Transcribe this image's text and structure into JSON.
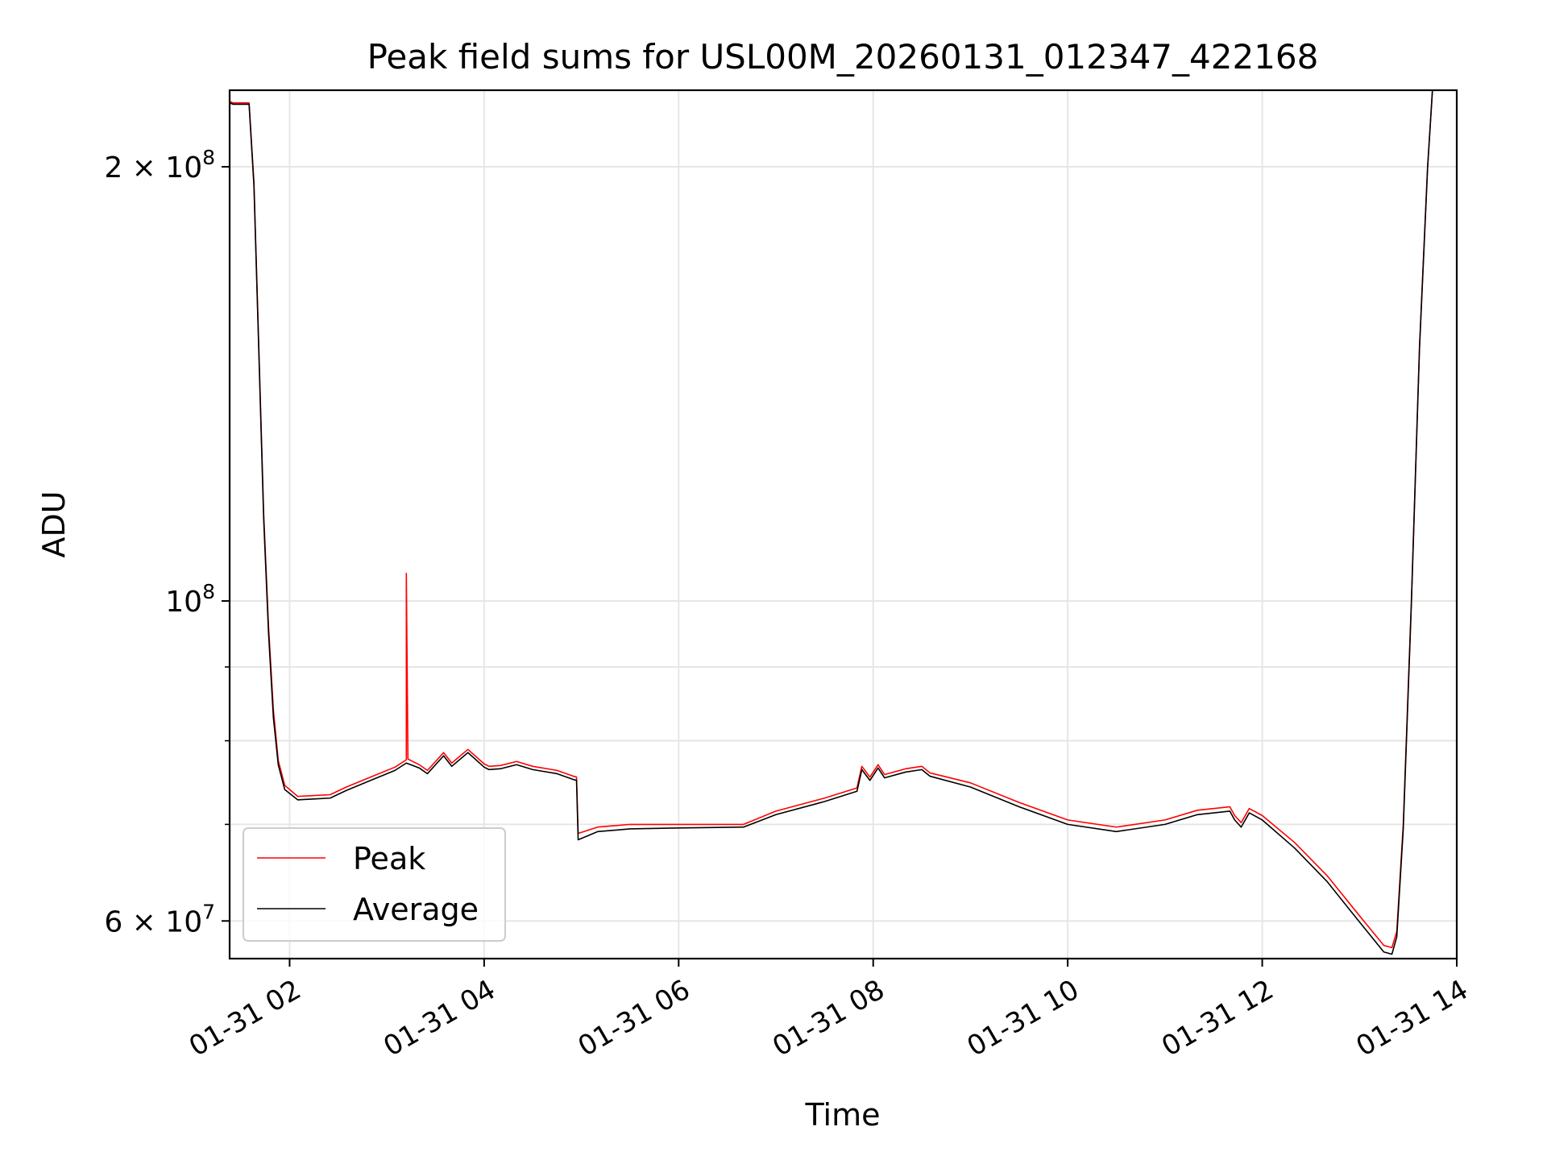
{
  "chart_data": {
    "type": "line",
    "title": "Peak field sums for USL00M_20260131_012347_422168",
    "xlabel": "Time",
    "ylabel": "ADU",
    "y_scale": "log",
    "grid": true,
    "legend_position": "lower-left",
    "xlim": [
      "2026-01-31 01:23",
      "2026-01-31 14:00"
    ],
    "ylim": [
      56500000,
      226000000
    ],
    "x_ticks": [
      "2026-01-31 02:00",
      "2026-01-31 04:00",
      "2026-01-31 06:00",
      "2026-01-31 08:00",
      "2026-01-31 10:00",
      "2026-01-31 12:00",
      "2026-01-31 14:00"
    ],
    "x_tick_labels": [
      "01-31 02",
      "01-31 04",
      "01-31 06",
      "01-31 08",
      "01-31 10",
      "01-31 12",
      "01-31 14"
    ],
    "y_major_ticks": [
      {
        "value": 60000000,
        "mantissa": "6",
        "exp": "7"
      },
      {
        "value": 100000000,
        "mantissa": "",
        "exp": "8"
      },
      {
        "value": 200000000,
        "mantissa": "2",
        "exp": "8"
      }
    ],
    "y_minor_ticks": [
      70000000,
      80000000,
      90000000
    ],
    "series": [
      {
        "name": "Peak",
        "color": "#ff0000",
        "points": [
          [
            "2026-01-31 01:23",
            222000000
          ],
          [
            "2026-01-31 01:25",
            221500000
          ],
          [
            "2026-01-31 01:35",
            221500000
          ],
          [
            "2026-01-31 01:38",
            195000000
          ],
          [
            "2026-01-31 01:41",
            150000000
          ],
          [
            "2026-01-31 01:44",
            115000000
          ],
          [
            "2026-01-31 01:47",
            96000000
          ],
          [
            "2026-01-31 01:50",
            84000000
          ],
          [
            "2026-01-31 01:53",
            77500000
          ],
          [
            "2026-01-31 01:57",
            74500000
          ],
          [
            "2026-01-31 02:05",
            73200000
          ],
          [
            "2026-01-31 02:15",
            73300000
          ],
          [
            "2026-01-31 02:25",
            73400000
          ],
          [
            "2026-01-31 02:35",
            74300000
          ],
          [
            "2026-01-31 02:50",
            75500000
          ],
          [
            "2026-01-31 03:05",
            76700000
          ],
          [
            "2026-01-31 03:12",
            77600000
          ],
          [
            "2026-01-31 03:12",
            104500000
          ],
          [
            "2026-01-31 03:13",
            77700000
          ],
          [
            "2026-01-31 03:20",
            77000000
          ],
          [
            "2026-01-31 03:25",
            76300000
          ],
          [
            "2026-01-31 03:35",
            78500000
          ],
          [
            "2026-01-31 03:40",
            77200000
          ],
          [
            "2026-01-31 03:50",
            78900000
          ],
          [
            "2026-01-31 04:00",
            77100000
          ],
          [
            "2026-01-31 04:03",
            76800000
          ],
          [
            "2026-01-31 04:10",
            76900000
          ],
          [
            "2026-01-31 04:20",
            77400000
          ],
          [
            "2026-01-31 04:30",
            76800000
          ],
          [
            "2026-01-31 04:45",
            76300000
          ],
          [
            "2026-01-31 04:55",
            75600000
          ],
          [
            "2026-01-31 04:57",
            75500000
          ],
          [
            "2026-01-31 04:58",
            69000000
          ],
          [
            "2026-01-31 05:10",
            69700000
          ],
          [
            "2026-01-31 05:30",
            70000000
          ],
          [
            "2026-01-31 06:00",
            70000000
          ],
          [
            "2026-01-31 06:40",
            70000000
          ],
          [
            "2026-01-31 07:00",
            71500000
          ],
          [
            "2026-01-31 07:30",
            73000000
          ],
          [
            "2026-01-31 07:50",
            74200000
          ],
          [
            "2026-01-31 07:53",
            76800000
          ],
          [
            "2026-01-31 07:58",
            75500000
          ],
          [
            "2026-01-31 08:03",
            77000000
          ],
          [
            "2026-01-31 08:07",
            75800000
          ],
          [
            "2026-01-31 08:20",
            76500000
          ],
          [
            "2026-01-31 08:30",
            76800000
          ],
          [
            "2026-01-31 08:35",
            76000000
          ],
          [
            "2026-01-31 09:00",
            74800000
          ],
          [
            "2026-01-31 09:30",
            72500000
          ],
          [
            "2026-01-31 10:00",
            70500000
          ],
          [
            "2026-01-31 10:30",
            69700000
          ],
          [
            "2026-01-31 11:00",
            70500000
          ],
          [
            "2026-01-31 11:20",
            71600000
          ],
          [
            "2026-01-31 11:40",
            72000000
          ],
          [
            "2026-01-31 11:43",
            71000000
          ],
          [
            "2026-01-31 11:47",
            70200000
          ],
          [
            "2026-01-31 11:52",
            71800000
          ],
          [
            "2026-01-31 12:00",
            71000000
          ],
          [
            "2026-01-31 12:20",
            68000000
          ],
          [
            "2026-01-31 12:40",
            64500000
          ],
          [
            "2026-01-31 13:00",
            60500000
          ],
          [
            "2026-01-31 13:15",
            57700000
          ],
          [
            "2026-01-31 13:20",
            57500000
          ],
          [
            "2026-01-31 13:23",
            59000000
          ],
          [
            "2026-01-31 13:27",
            70000000
          ],
          [
            "2026-01-31 13:32",
            100000000
          ],
          [
            "2026-01-31 13:37",
            150000000
          ],
          [
            "2026-01-31 13:42",
            200000000
          ],
          [
            "2026-01-31 13:45",
            226000000
          ]
        ]
      },
      {
        "name": "Average",
        "color": "#000000",
        "points": [
          [
            "2026-01-31 01:23",
            221500000
          ],
          [
            "2026-01-31 01:25",
            221000000
          ],
          [
            "2026-01-31 01:35",
            221000000
          ],
          [
            "2026-01-31 01:38",
            194000000
          ],
          [
            "2026-01-31 01:41",
            149000000
          ],
          [
            "2026-01-31 01:44",
            114000000
          ],
          [
            "2026-01-31 01:47",
            95000000
          ],
          [
            "2026-01-31 01:50",
            83000000
          ],
          [
            "2026-01-31 01:53",
            77000000
          ],
          [
            "2026-01-31 01:57",
            74000000
          ],
          [
            "2026-01-31 02:05",
            72800000
          ],
          [
            "2026-01-31 02:15",
            72900000
          ],
          [
            "2026-01-31 02:25",
            73000000
          ],
          [
            "2026-01-31 02:35",
            73900000
          ],
          [
            "2026-01-31 02:50",
            75100000
          ],
          [
            "2026-01-31 03:05",
            76300000
          ],
          [
            "2026-01-31 03:12",
            77200000
          ],
          [
            "2026-01-31 03:20",
            76600000
          ],
          [
            "2026-01-31 03:25",
            75900000
          ],
          [
            "2026-01-31 03:35",
            78100000
          ],
          [
            "2026-01-31 03:40",
            76800000
          ],
          [
            "2026-01-31 03:50",
            78500000
          ],
          [
            "2026-01-31 04:00",
            76700000
          ],
          [
            "2026-01-31 04:03",
            76400000
          ],
          [
            "2026-01-31 04:10",
            76500000
          ],
          [
            "2026-01-31 04:20",
            77000000
          ],
          [
            "2026-01-31 04:30",
            76400000
          ],
          [
            "2026-01-31 04:45",
            75900000
          ],
          [
            "2026-01-31 04:55",
            75200000
          ],
          [
            "2026-01-31 04:57",
            75100000
          ],
          [
            "2026-01-31 04:58",
            68300000
          ],
          [
            "2026-01-31 05:10",
            69200000
          ],
          [
            "2026-01-31 05:30",
            69500000
          ],
          [
            "2026-01-31 06:00",
            69600000
          ],
          [
            "2026-01-31 06:40",
            69700000
          ],
          [
            "2026-01-31 07:00",
            71100000
          ],
          [
            "2026-01-31 07:30",
            72600000
          ],
          [
            "2026-01-31 07:50",
            73800000
          ],
          [
            "2026-01-31 07:53",
            76400000
          ],
          [
            "2026-01-31 07:58",
            75100000
          ],
          [
            "2026-01-31 08:03",
            76600000
          ],
          [
            "2026-01-31 08:07",
            75400000
          ],
          [
            "2026-01-31 08:20",
            76100000
          ],
          [
            "2026-01-31 08:30",
            76400000
          ],
          [
            "2026-01-31 08:35",
            75600000
          ],
          [
            "2026-01-31 09:00",
            74300000
          ],
          [
            "2026-01-31 09:30",
            72000000
          ],
          [
            "2026-01-31 10:00",
            70000000
          ],
          [
            "2026-01-31 10:30",
            69200000
          ],
          [
            "2026-01-31 11:00",
            70000000
          ],
          [
            "2026-01-31 11:20",
            71100000
          ],
          [
            "2026-01-31 11:40",
            71500000
          ],
          [
            "2026-01-31 11:43",
            70500000
          ],
          [
            "2026-01-31 11:47",
            69700000
          ],
          [
            "2026-01-31 11:52",
            71300000
          ],
          [
            "2026-01-31 12:00",
            70500000
          ],
          [
            "2026-01-31 12:20",
            67400000
          ],
          [
            "2026-01-31 12:40",
            63900000
          ],
          [
            "2026-01-31 13:00",
            59900000
          ],
          [
            "2026-01-31 13:15",
            57100000
          ],
          [
            "2026-01-31 13:20",
            56900000
          ],
          [
            "2026-01-31 13:23",
            58500000
          ],
          [
            "2026-01-31 13:27",
            69500000
          ],
          [
            "2026-01-31 13:32",
            99500000
          ],
          [
            "2026-01-31 13:37",
            149500000
          ],
          [
            "2026-01-31 13:42",
            199500000
          ],
          [
            "2026-01-31 13:45",
            226000000
          ]
        ]
      }
    ]
  }
}
